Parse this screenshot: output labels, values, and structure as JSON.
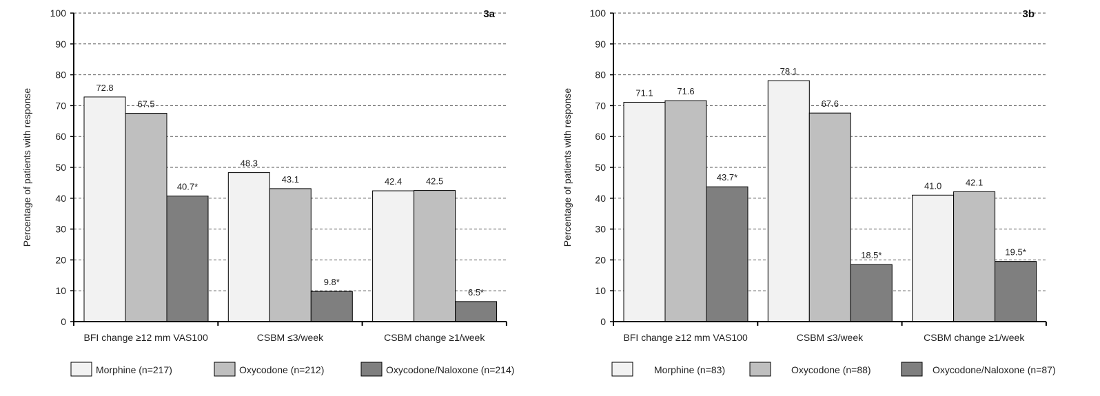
{
  "chart_data": [
    {
      "type": "bar",
      "panel_label": "3a",
      "ylabel": "Percentage of patients with response",
      "ylim": [
        0,
        100
      ],
      "yticks": [
        0,
        10,
        20,
        30,
        40,
        50,
        60,
        70,
        80,
        90,
        100
      ],
      "grid": "dashed horizontal",
      "categories": [
        "BFI change ≥12 mm VAS100",
        "CSBM ≤3/week",
        "CSBM change ≥1/week"
      ],
      "series": [
        {
          "name": "Morphine (n=217)",
          "color": "#f2f2f2",
          "values": [
            72.8,
            48.3,
            42.4
          ],
          "labels": [
            "72.8",
            "48.3",
            "42.4"
          ]
        },
        {
          "name": "Oxycodone (n=212)",
          "color": "#bfbfbf",
          "values": [
            67.5,
            43.1,
            42.5
          ],
          "labels": [
            "67.5",
            "43.1",
            "42.5"
          ]
        },
        {
          "name": "Oxycodone/Naloxone (n=214)",
          "color": "#7f7f7f",
          "values": [
            40.7,
            9.8,
            6.5
          ],
          "labels": [
            "40.7*",
            "9.8*",
            "6.5*"
          ]
        }
      ],
      "legend_position": "bottom"
    },
    {
      "type": "bar",
      "panel_label": "3b",
      "ylabel": "Percentage of patients with response",
      "ylim": [
        0,
        100
      ],
      "yticks": [
        0,
        10,
        20,
        30,
        40,
        50,
        60,
        70,
        80,
        90,
        100
      ],
      "grid": "dashed horizontal",
      "categories": [
        "BFI change ≥12 mm VAS100",
        "CSBM ≤3/week",
        "CSBM change ≥1/week"
      ],
      "series": [
        {
          "name": "Morphine (n=83)",
          "color": "#f2f2f2",
          "values": [
            71.1,
            78.1,
            41.0
          ],
          "labels": [
            "71.1",
            "78.1",
            "41.0"
          ]
        },
        {
          "name": "Oxycodone (n=88)",
          "color": "#bfbfbf",
          "values": [
            71.6,
            67.6,
            42.1
          ],
          "labels": [
            "71.6",
            "67.6",
            "42.1"
          ]
        },
        {
          "name": "Oxycodone/Naloxone (n=87)",
          "color": "#7f7f7f",
          "values": [
            43.7,
            18.5,
            19.5
          ],
          "labels": [
            "43.7*",
            "18.5*",
            "19.5*"
          ]
        }
      ],
      "legend_position": "bottom"
    }
  ]
}
